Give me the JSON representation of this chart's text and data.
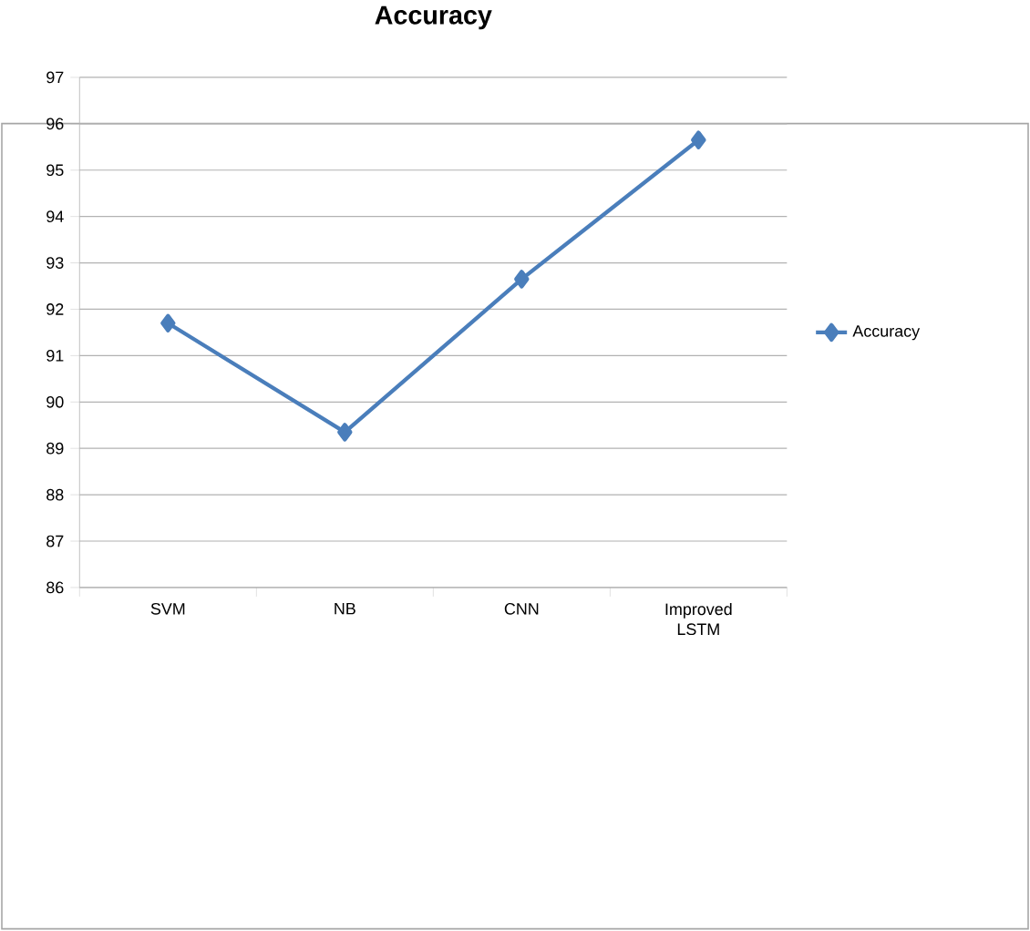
{
  "chart_data": {
    "type": "line",
    "title": "Accuracy",
    "categories": [
      "SVM",
      "NB",
      "CNN",
      "Improved LSTM"
    ],
    "series": [
      {
        "name": "Accuracy",
        "color": "#4a7ebb",
        "values": [
          91.7,
          89.35,
          92.65,
          95.65
        ]
      }
    ],
    "ylim": [
      86,
      97
    ],
    "yticks": [
      86,
      87,
      88,
      89,
      90,
      91,
      92,
      93,
      94,
      95,
      96,
      97
    ],
    "grid": "y",
    "legend": "right",
    "marker": "diamond",
    "line_style": "solid"
  }
}
